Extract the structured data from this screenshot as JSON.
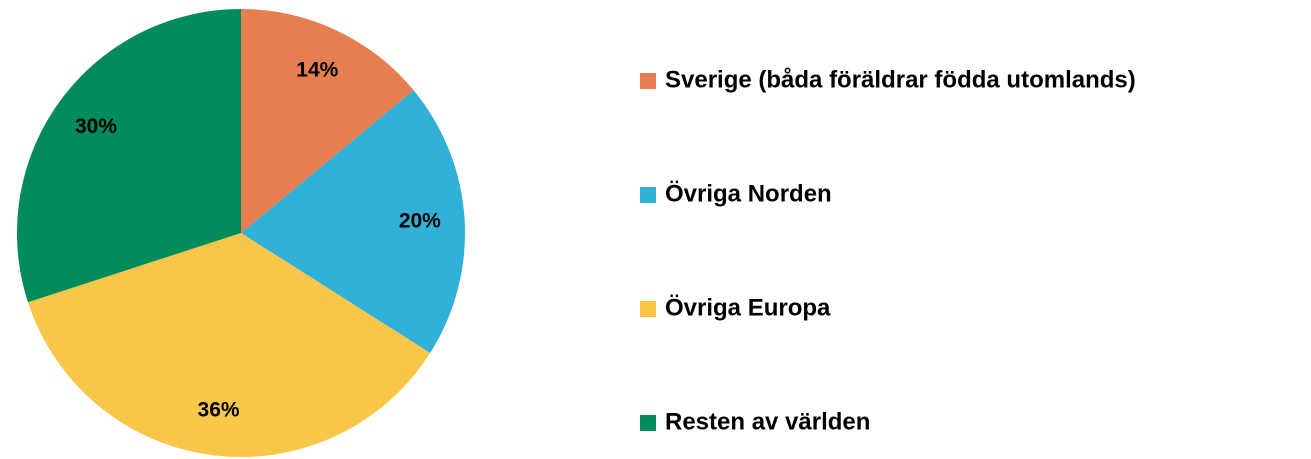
{
  "chart_data": {
    "type": "pie",
    "categories": [
      "Sverige (båda föräldrar födda utomlands)",
      "Övriga Norden",
      "Övriga Europa",
      "Resten av världen"
    ],
    "values": [
      14,
      20,
      36,
      30
    ],
    "value_labels": [
      "14%",
      "20%",
      "36%",
      "30%"
    ],
    "colors": [
      "#e67e50",
      "#31b0d8",
      "#f8c74a",
      "#008c5a"
    ],
    "legend": "right"
  }
}
